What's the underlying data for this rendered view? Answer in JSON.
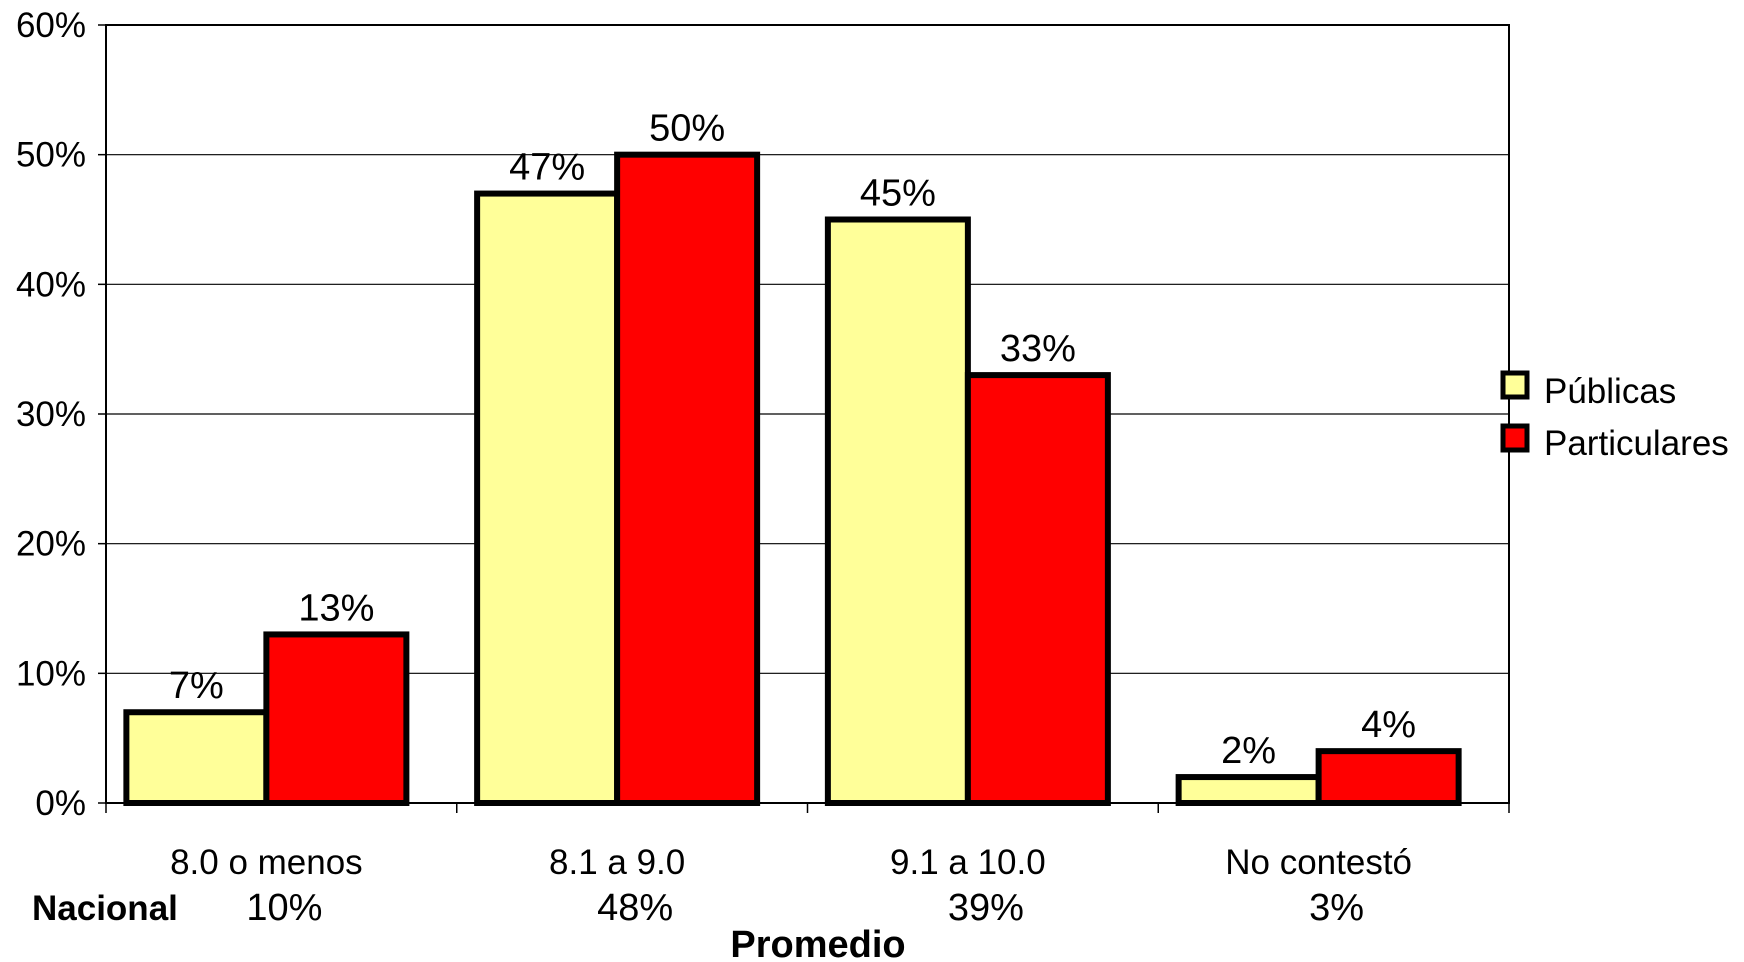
{
  "chart_data": {
    "type": "bar",
    "categories": [
      "8.0 o menos",
      "8.1 a 9.0",
      "9.1 a 10.0",
      "No contestó"
    ],
    "series": [
      {
        "name": "Públicas",
        "values": [
          7,
          47,
          45,
          2
        ],
        "labels": [
          "7%",
          "47%",
          "45%",
          "2%"
        ],
        "color": "#FFFF99"
      },
      {
        "name": "Particulares",
        "values": [
          13,
          50,
          33,
          4
        ],
        "labels": [
          "13%",
          "50%",
          "33%",
          "4%"
        ],
        "color": "#FF0000"
      }
    ],
    "ylim": [
      0,
      60
    ],
    "yticks": [
      "0%",
      "10%",
      "20%",
      "30%",
      "40%",
      "50%",
      "60%"
    ],
    "ytick_values": [
      0,
      10,
      20,
      30,
      40,
      50,
      60
    ],
    "xlabel": "Promedio",
    "nacional": {
      "label": "Nacional",
      "values": [
        10,
        48,
        39,
        3
      ],
      "labels": [
        "10%",
        "48%",
        "39%",
        "3%"
      ]
    },
    "grid": true,
    "legend_position": "right"
  }
}
